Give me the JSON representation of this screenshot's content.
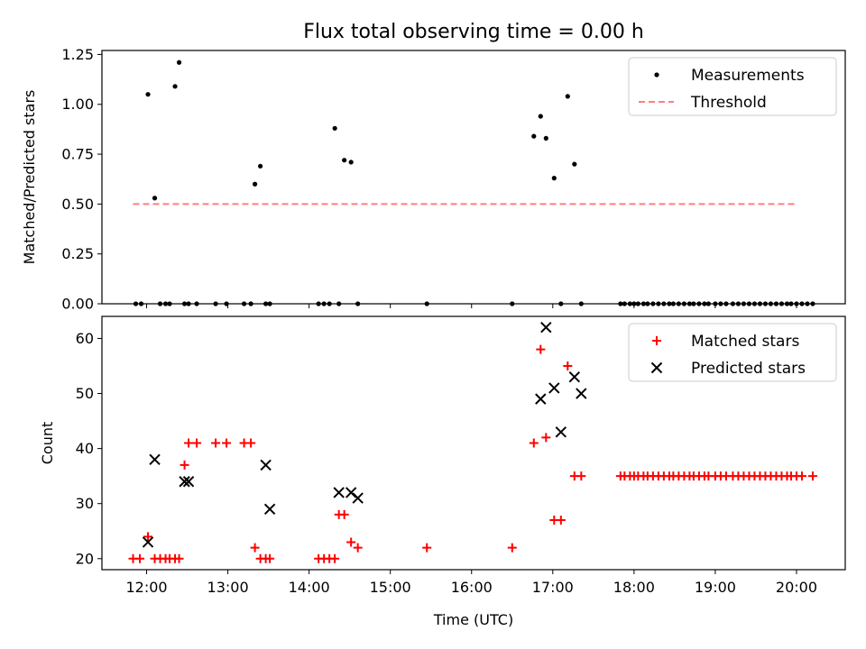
{
  "chart_data": {
    "title": "Flux total observing time = 0.00 h",
    "xlabel": "Time (UTC)",
    "xlim_hours": [
      11.45,
      20.6
    ],
    "xticks": [
      "12:00",
      "13:00",
      "14:00",
      "15:00",
      "16:00",
      "17:00",
      "18:00",
      "19:00",
      "20:00"
    ],
    "panels": [
      {
        "type": "scatter",
        "ylabel": "Matched/Predicted stars",
        "ylim": [
          0,
          1.27
        ],
        "yticks": [
          "0.00",
          "0.25",
          "0.50",
          "0.75",
          "1.00",
          "1.25"
        ],
        "legend": "top-right",
        "grid": false,
        "series": [
          {
            "name": "Measurements",
            "kind": "dot",
            "color": "#000000",
            "x": [
              "11:52",
              "11:56",
              "12:01",
              "12:06",
              "12:10",
              "12:14",
              "12:17",
              "12:21",
              "12:24",
              "12:28",
              "12:31",
              "12:37",
              "12:51",
              "12:59",
              "13:12",
              "13:17",
              "13:20",
              "13:24",
              "13:28",
              "13:31",
              "14:07",
              "14:11",
              "14:15",
              "14:19",
              "14:22",
              "14:26",
              "14:31",
              "14:36",
              "15:27",
              "16:30",
              "16:46",
              "16:51",
              "16:55",
              "17:01",
              "17:06",
              "17:11",
              "17:16",
              "17:21",
              "17:50",
              "17:53",
              "17:57",
              "18:00",
              "18:03",
              "18:07",
              "18:10",
              "18:14",
              "18:18",
              "18:22",
              "18:26",
              "18:29",
              "18:33",
              "18:37",
              "18:41",
              "18:44",
              "18:48",
              "18:52",
              "18:55",
              "19:00",
              "19:04",
              "19:08",
              "19:13",
              "19:17",
              "19:21",
              "19:25",
              "19:29",
              "19:33",
              "19:37",
              "19:41",
              "19:45",
              "19:49",
              "19:53",
              "19:56",
              "20:00",
              "20:04",
              "20:08",
              "20:12"
            ],
            "y": [
              0,
              0,
              1.05,
              0.53,
              0,
              0,
              0,
              1.09,
              1.21,
              0,
              0,
              0,
              0,
              0,
              0,
              0,
              0.6,
              0.69,
              0,
              0,
              0,
              0,
              0,
              0.88,
              0,
              0.72,
              0.71,
              0,
              0,
              0,
              0.84,
              0.94,
              0.83,
              0.63,
              0,
              1.04,
              0.7,
              0,
              0,
              0,
              0,
              0,
              0,
              0,
              0,
              0,
              0,
              0,
              0,
              0,
              0,
              0,
              0,
              0,
              0,
              0,
              0,
              0,
              0,
              0,
              0,
              0,
              0,
              0,
              0,
              0,
              0,
              0,
              0,
              0,
              0,
              0,
              0,
              0,
              0,
              0
            ]
          },
          {
            "name": "Threshold",
            "kind": "dashed-line",
            "color": "#ff7f7f",
            "x": [
              "11:50",
              "20:00"
            ],
            "y": [
              0.5,
              0.5
            ]
          }
        ]
      },
      {
        "type": "scatter",
        "ylabel": "Count",
        "ylim": [
          18,
          64
        ],
        "yticks": [
          "20",
          "30",
          "40",
          "50",
          "60"
        ],
        "legend": "top-right",
        "grid": false,
        "series": [
          {
            "name": "Matched stars",
            "kind": "plus",
            "color": "#ff0000",
            "x": [
              "11:50",
              "11:55",
              "12:01",
              "12:06",
              "12:10",
              "12:14",
              "12:17",
              "12:21",
              "12:24",
              "12:28",
              "12:31",
              "12:37",
              "12:51",
              "12:59",
              "13:12",
              "13:17",
              "13:20",
              "13:24",
              "13:28",
              "13:31",
              "14:07",
              "14:11",
              "14:15",
              "14:19",
              "14:22",
              "14:26",
              "14:31",
              "14:36",
              "15:27",
              "16:30",
              "16:46",
              "16:51",
              "16:55",
              "17:01",
              "17:06",
              "17:11",
              "17:16",
              "17:21",
              "17:50",
              "17:53",
              "17:57",
              "18:00",
              "18:03",
              "18:07",
              "18:10",
              "18:14",
              "18:18",
              "18:22",
              "18:26",
              "18:29",
              "18:33",
              "18:37",
              "18:41",
              "18:44",
              "18:48",
              "18:52",
              "18:55",
              "19:00",
              "19:04",
              "19:08",
              "19:13",
              "19:17",
              "19:21",
              "19:25",
              "19:29",
              "19:33",
              "19:37",
              "19:41",
              "19:45",
              "19:49",
              "19:53",
              "19:56",
              "20:00",
              "20:04",
              "20:12"
            ],
            "y": [
              20,
              20,
              24,
              20,
              20,
              20,
              20,
              20,
              20,
              37,
              41,
              41,
              41,
              41,
              41,
              41,
              22,
              20,
              20,
              20,
              20,
              20,
              20,
              20,
              28,
              28,
              23,
              22,
              22,
              22,
              41,
              58,
              42,
              27,
              27,
              55,
              35,
              35,
              35,
              35,
              35,
              35,
              35,
              35,
              35,
              35,
              35,
              35,
              35,
              35,
              35,
              35,
              35,
              35,
              35,
              35,
              35,
              35,
              35,
              35,
              35,
              35,
              35,
              35,
              35,
              35,
              35,
              35,
              35,
              35,
              35,
              35,
              35,
              35,
              35
            ]
          },
          {
            "name": "Predicted stars",
            "kind": "x",
            "color": "#000000",
            "x": [
              "12:01",
              "12:06",
              "12:28",
              "12:31",
              "13:28",
              "13:31",
              "14:22",
              "14:31",
              "14:36",
              "16:51",
              "16:55",
              "17:01",
              "17:06",
              "17:16",
              "17:21"
            ],
            "y": [
              23,
              38,
              34,
              34,
              37,
              29,
              32,
              32,
              31,
              49,
              62,
              51,
              43,
              53,
              50
            ]
          }
        ]
      }
    ]
  }
}
